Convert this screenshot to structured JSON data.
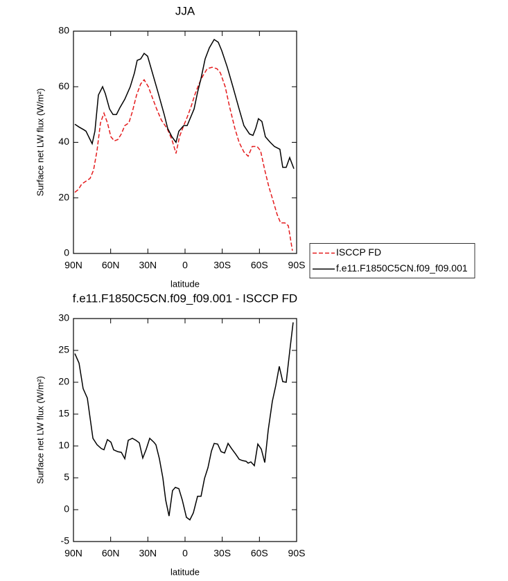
{
  "chart_data": [
    {
      "type": "line",
      "title": "JJA",
      "xlabel": "latitude",
      "ylabel": "Surface net LW flux (W/m²)",
      "xlim": [
        90,
        -90
      ],
      "xticks": [
        {
          "value": 90,
          "label": "90N"
        },
        {
          "value": 60,
          "label": "60N"
        },
        {
          "value": 30,
          "label": "30N"
        },
        0,
        {
          "value": -30,
          "label": "30S"
        },
        {
          "value": -60,
          "label": "60S"
        },
        {
          "value": -90,
          "label": "90S"
        }
      ],
      "ylim": [
        0,
        80
      ],
      "yticks": [
        0,
        20,
        40,
        60,
        80
      ],
      "legend": "right",
      "series": [
        {
          "name": "ISCCP FD",
          "color": "#e41a1c",
          "style": "dashed",
          "x": [
            88.9,
            86.1,
            83.3,
            79.9,
            76.6,
            73.8,
            71,
            68.2,
            65.4,
            62.6,
            59.8,
            57,
            54.2,
            51.4,
            48.6,
            45.3,
            42.5,
            39.1,
            35.8,
            33,
            29.6,
            26.3,
            22.9,
            19.1,
            14.5,
            10.6,
            7.3,
            4.5,
            1.1,
            -1.7,
            -5,
            -7.8,
            -11.2,
            -14.5,
            -17.9,
            -21.8,
            -25.7,
            -28.5,
            -32.4,
            -35.8,
            -40.2,
            -43.6,
            -47.5,
            -50.9,
            -54.2,
            -58.1,
            -60.9,
            -64.3,
            -67.6,
            -71,
            -74.3,
            -77.1,
            -80.5,
            -83.3,
            -86.6
          ],
          "values": [
            22,
            23,
            25,
            26,
            27,
            30,
            37,
            47,
            50.5,
            47,
            42,
            40.5,
            41,
            43,
            46,
            47,
            51,
            57,
            61,
            62.5,
            60,
            56,
            52,
            48,
            45,
            41,
            36,
            42,
            46,
            49,
            53,
            57,
            61,
            64,
            66.5,
            67,
            66.5,
            65,
            60,
            53,
            45,
            40,
            36.5,
            35,
            38.5,
            38.5,
            37,
            30,
            24,
            19,
            14,
            11,
            11,
            10,
            1
          ]
        },
        {
          "name": "f.e11.F1850C5CN.f09_f09.001",
          "color": "#000000",
          "style": "solid",
          "x": [
            88.9,
            85.5,
            81.6,
            79.9,
            76.6,
            74.9,
            72.7,
            69.9,
            66.5,
            64.3,
            60.9,
            58.1,
            55.3,
            52.5,
            48.6,
            44.2,
            40.8,
            38.6,
            35.8,
            33,
            30.2,
            21.8,
            16.8,
            14,
            10.6,
            7.3,
            5,
            1.1,
            -1.7,
            -7.3,
            -10.1,
            -12.9,
            -16.2,
            -19.6,
            -23.5,
            -26.8,
            -29.6,
            -34.1,
            -38.6,
            -43.6,
            -47.5,
            -52,
            -54.8,
            -57,
            -59.2,
            -62,
            -64.8,
            -68.7,
            -72.1,
            -76.5,
            -78.8,
            -81.6,
            -84.4,
            -87.8
          ],
          "values": [
            46.5,
            45.5,
            44.5,
            44,
            41,
            39.5,
            44,
            57,
            60,
            57.5,
            52,
            50,
            50,
            52.5,
            55.5,
            60,
            65,
            69.5,
            70,
            72,
            71,
            58,
            50,
            45,
            42,
            40,
            44,
            46,
            46,
            52,
            58,
            63,
            70,
            74,
            77,
            76,
            73,
            67,
            60,
            52,
            46,
            43,
            42.5,
            45,
            48.5,
            47.5,
            42,
            40,
            38.5,
            37.5,
            31,
            31,
            34.5,
            30.5
          ]
        }
      ]
    },
    {
      "type": "line",
      "title": "f.e11.F1850C5CN.f09_f09.001 - ISCCP FD",
      "xlabel": "latitude",
      "ylabel": "Surface net LW flux (W/m²)",
      "xlim": [
        90,
        -90
      ],
      "xticks": [
        {
          "value": 90,
          "label": "90N"
        },
        {
          "value": 60,
          "label": "60N"
        },
        {
          "value": 30,
          "label": "30N"
        },
        0,
        {
          "value": -30,
          "label": "30S"
        },
        {
          "value": -60,
          "label": "60S"
        },
        {
          "value": -90,
          "label": "90S"
        }
      ],
      "ylim": [
        -5,
        30
      ],
      "yticks": [
        -5,
        0,
        5,
        10,
        15,
        20,
        25,
        30
      ],
      "series": [
        {
          "color": "#000000",
          "style": "solid",
          "x": [
            88.9,
            85.5,
            82.2,
            78.8,
            74.3,
            71,
            67.6,
            65.4,
            62.6,
            59.8,
            57.6,
            54.2,
            51.4,
            48.6,
            45.8,
            42.5,
            39.7,
            36.9,
            34.1,
            31.3,
            28.5,
            25.2,
            23.5,
            20.7,
            17.9,
            15.6,
            12.9,
            10.1,
            7.8,
            5,
            2.2,
            -1.1,
            -3.9,
            -6.7,
            -10.1,
            -12.9,
            -15.7,
            -18.5,
            -21.3,
            -23.5,
            -26.3,
            -29.1,
            -31.9,
            -34.7,
            -37.5,
            -40.9,
            -43.7,
            -46.4,
            -49.2,
            -50.9,
            -53.1,
            -55.9,
            -58.7,
            -61.5,
            -64.3,
            -67.1,
            -70.4,
            -73.2,
            -76,
            -78.8,
            -81.6,
            -84.4,
            -87.2
          ],
          "values": [
            24.5,
            23,
            19,
            17.5,
            11.2,
            10.2,
            9.6,
            9.4,
            11,
            10.6,
            9.4,
            9.1,
            9,
            8,
            10.9,
            11.2,
            10.9,
            10.5,
            8.1,
            9.5,
            11.2,
            10.6,
            10.2,
            8,
            5,
            1.5,
            -1,
            3,
            3.5,
            3.3,
            1.5,
            -1.2,
            -1.6,
            -0.5,
            2.1,
            2.1,
            4.9,
            6.6,
            9.2,
            10.4,
            10.3,
            9.1,
            8.9,
            10.4,
            9.6,
            8.7,
            7.9,
            7.7,
            7.6,
            7.3,
            7.5,
            6.9,
            10.3,
            9.5,
            7.4,
            12.5,
            17,
            19.5,
            22.5,
            20.1,
            20,
            24.8,
            29.4
          ]
        }
      ]
    }
  ]
}
